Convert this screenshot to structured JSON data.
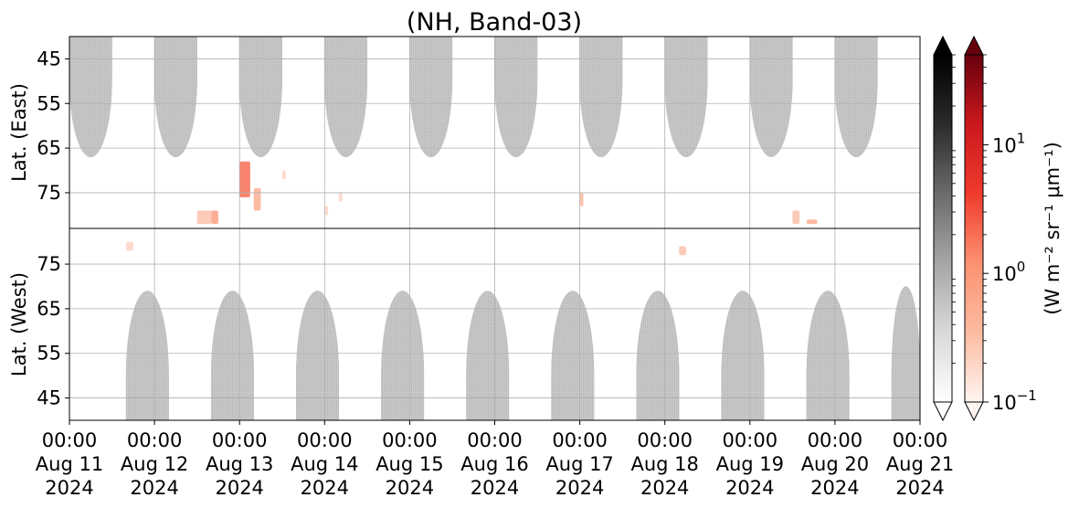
{
  "chart_data": {
    "type": "heatmap",
    "title": "(NH, Band-03)",
    "colorbar_label": "(W m⁻² sr⁻¹ μm⁻¹)",
    "colorbar_scale": "log",
    "colorbar_ticks": [
      {
        "base": "10",
        "exp": "−1",
        "value": 0.1
      },
      {
        "base": "10",
        "exp": "0",
        "value": 1
      },
      {
        "base": "10",
        "exp": "1",
        "value": 10
      }
    ],
    "colorbar_range": [
      0.1,
      50
    ],
    "colormaps": {
      "gray": [
        "#ffffff",
        "#d9d9d9",
        "#a6a6a6",
        "#6b6b6b",
        "#2b2b2b",
        "#000000"
      ],
      "red": [
        "#fff5f0",
        "#fcbba1",
        "#fc9272",
        "#ef3b2c",
        "#cb181d",
        "#67000d"
      ]
    },
    "x_start": "2024-08-11 00:00",
    "x_end": "2024-08-21 00:00",
    "x_ticks": [
      {
        "time": "00:00",
        "date": "Aug 11",
        "year": "2024"
      },
      {
        "time": "00:00",
        "date": "Aug 12",
        "year": "2024"
      },
      {
        "time": "00:00",
        "date": "Aug 13",
        "year": "2024"
      },
      {
        "time": "00:00",
        "date": "Aug 14",
        "year": "2024"
      },
      {
        "time": "00:00",
        "date": "Aug 15",
        "year": "2024"
      },
      {
        "time": "00:00",
        "date": "Aug 16",
        "year": "2024"
      },
      {
        "time": "00:00",
        "date": "Aug 17",
        "year": "2024"
      },
      {
        "time": "00:00",
        "date": "Aug 18",
        "year": "2024"
      },
      {
        "time": "00:00",
        "date": "Aug 19",
        "year": "2024"
      },
      {
        "time": "00:00",
        "date": "Aug 20",
        "year": "2024"
      },
      {
        "time": "00:00",
        "date": "Aug 21",
        "year": "2024"
      }
    ],
    "panels": [
      {
        "name": "east",
        "ylabel": "Lat. (East)",
        "ylim": [
          40,
          83
        ],
        "y_inverted": true,
        "y_ticks": [
          45,
          55,
          65,
          75
        ],
        "day_regions": [
          {
            "start": "2024-08-11 00:00",
            "end": "2024-08-11 12:00",
            "boundary_lat": 67
          },
          {
            "start": "2024-08-12 00:00",
            "end": "2024-08-12 12:00",
            "boundary_lat": 67
          },
          {
            "start": "2024-08-13 00:00",
            "end": "2024-08-13 12:00",
            "boundary_lat": 67
          },
          {
            "start": "2024-08-14 00:00",
            "end": "2024-08-14 12:00",
            "boundary_lat": 67
          },
          {
            "start": "2024-08-15 00:00",
            "end": "2024-08-15 12:00",
            "boundary_lat": 67
          },
          {
            "start": "2024-08-16 00:00",
            "end": "2024-08-16 12:00",
            "boundary_lat": 67
          },
          {
            "start": "2024-08-17 00:00",
            "end": "2024-08-17 12:00",
            "boundary_lat": 67
          },
          {
            "start": "2024-08-18 00:00",
            "end": "2024-08-18 12:00",
            "boundary_lat": 67
          },
          {
            "start": "2024-08-19 00:00",
            "end": "2024-08-19 12:00",
            "boundary_lat": 67
          },
          {
            "start": "2024-08-20 00:00",
            "end": "2024-08-20 12:00",
            "boundary_lat": 67
          }
        ],
        "emission_patches": [
          {
            "time": "2024-08-12 12:00",
            "lat_min": 79,
            "lat_max": 82,
            "hours": 4,
            "value": 0.3
          },
          {
            "time": "2024-08-12 16:00",
            "lat_min": 79,
            "lat_max": 82,
            "hours": 2,
            "value": 0.8
          },
          {
            "time": "2024-08-13 00:00",
            "lat_min": 68,
            "lat_max": 76,
            "hours": 3,
            "value": 2.0
          },
          {
            "time": "2024-08-13 04:00",
            "lat_min": 74,
            "lat_max": 79,
            "hours": 2,
            "value": 0.5
          },
          {
            "time": "2024-08-13 12:00",
            "lat_min": 70,
            "lat_max": 72,
            "hours": 1,
            "value": 0.2
          },
          {
            "time": "2024-08-14 00:00",
            "lat_min": 78,
            "lat_max": 80,
            "hours": 1,
            "value": 0.2
          },
          {
            "time": "2024-08-14 04:00",
            "lat_min": 75,
            "lat_max": 77,
            "hours": 1,
            "value": 0.2
          },
          {
            "time": "2024-08-17 00:00",
            "lat_min": 75,
            "lat_max": 78,
            "hours": 1,
            "value": 0.4
          },
          {
            "time": "2024-08-19 12:00",
            "lat_min": 79,
            "lat_max": 82,
            "hours": 2,
            "value": 0.3
          },
          {
            "time": "2024-08-19 16:00",
            "lat_min": 81,
            "lat_max": 82,
            "hours": 3,
            "value": 0.5
          }
        ]
      },
      {
        "name": "west",
        "ylabel": "Lat. (West)",
        "ylim": [
          40,
          83
        ],
        "y_inverted": false,
        "y_ticks": [
          75,
          65,
          55,
          45
        ],
        "day_regions": [
          {
            "start": "2024-08-11 16:00",
            "end": "2024-08-12 04:00",
            "boundary_lat": 69
          },
          {
            "start": "2024-08-12 16:00",
            "end": "2024-08-13 04:00",
            "boundary_lat": 69
          },
          {
            "start": "2024-08-13 16:00",
            "end": "2024-08-14 04:00",
            "boundary_lat": 69
          },
          {
            "start": "2024-08-14 16:00",
            "end": "2024-08-15 04:00",
            "boundary_lat": 69
          },
          {
            "start": "2024-08-15 16:00",
            "end": "2024-08-16 04:00",
            "boundary_lat": 69
          },
          {
            "start": "2024-08-16 16:00",
            "end": "2024-08-17 04:00",
            "boundary_lat": 69
          },
          {
            "start": "2024-08-17 16:00",
            "end": "2024-08-18 04:00",
            "boundary_lat": 69
          },
          {
            "start": "2024-08-18 16:00",
            "end": "2024-08-19 04:00",
            "boundary_lat": 69
          },
          {
            "start": "2024-08-19 16:00",
            "end": "2024-08-20 04:00",
            "boundary_lat": 69
          },
          {
            "start": "2024-08-20 16:00",
            "end": "2024-08-21 00:00",
            "boundary_lat": 70
          }
        ],
        "emission_patches": [
          {
            "time": "2024-08-11 16:00",
            "lat_min": 78,
            "lat_max": 80,
            "hours": 2,
            "value": 0.2
          },
          {
            "time": "2024-08-18 04:00",
            "lat_min": 77,
            "lat_max": 79,
            "hours": 2,
            "value": 0.3
          }
        ]
      }
    ],
    "grid": true
  }
}
